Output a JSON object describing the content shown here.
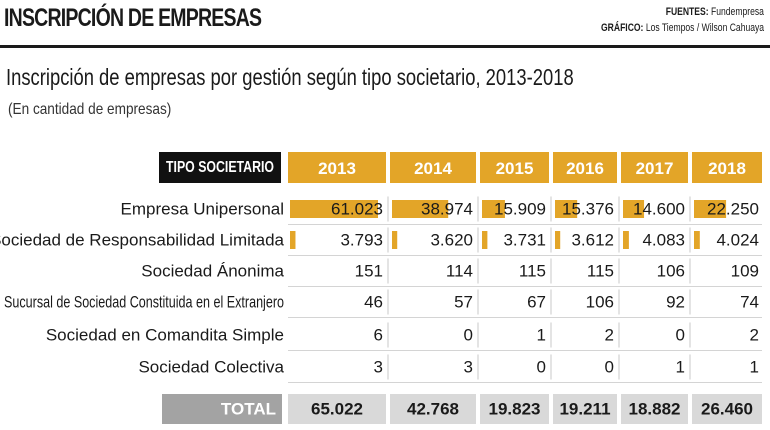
{
  "header": {
    "title": "INSCRIPCIÓN DE EMPRESAS",
    "sources_label": "FUENTES:",
    "sources_value": "Fundempresa",
    "graphic_label": "GRÁFICO:",
    "graphic_value": "Los Tiempos / Wilson Cahuaya"
  },
  "colors": {
    "accent": "#e3a528",
    "header_dark": "#111111",
    "total_gray": "#a3a3a3",
    "total_cell": "#d9d9d9"
  },
  "chart_data": {
    "type": "table",
    "title": "Inscripción de empresas por gestión según tipo societario, 2013-2018",
    "subtitle": "(En cantidad de empresas)",
    "row_header": "TIPO SOCIETARIO",
    "columns": [
      "2013",
      "2014",
      "2015",
      "2016",
      "2017",
      "2018"
    ],
    "rows": [
      {
        "label": "Empresa Unipersonal",
        "values": [
          61023,
          38974,
          15909,
          15376,
          14600,
          22250
        ],
        "display": [
          "61.023",
          "38.974",
          "15.909",
          "15.376",
          "14.600",
          "22.250"
        ]
      },
      {
        "label": "Sociedad de Responsabilidad Limitada",
        "values": [
          3793,
          3620,
          3731,
          3612,
          4083,
          4024
        ],
        "display": [
          "3.793",
          "3.620",
          "3.731",
          "3.612",
          "4.083",
          "4.024"
        ]
      },
      {
        "label": "Sociedad Ánonima",
        "values": [
          151,
          114,
          115,
          115,
          106,
          109
        ],
        "display": [
          "151",
          "114",
          "115",
          "115",
          "106",
          "109"
        ]
      },
      {
        "label": "Sucursal de Sociedad Constituida en el Extranjero",
        "values": [
          46,
          57,
          67,
          106,
          92,
          74
        ],
        "display": [
          "46",
          "57",
          "67",
          "106",
          "92",
          "74"
        ]
      },
      {
        "label": "Sociedad en Comandita Simple",
        "values": [
          6,
          0,
          1,
          2,
          0,
          2
        ],
        "display": [
          "6",
          "0",
          "1",
          "2",
          "0",
          "2"
        ]
      },
      {
        "label": "Sociedad Colectiva",
        "values": [
          3,
          3,
          0,
          0,
          1,
          1
        ],
        "display": [
          "3",
          "3",
          "0",
          "0",
          "1",
          "1"
        ]
      }
    ],
    "total": {
      "label": "TOTAL",
      "values": [
        65022,
        42768,
        19823,
        19211,
        18882,
        26460
      ],
      "display": [
        "65.022",
        "42.768",
        "19.823",
        "19.211",
        "18.882",
        "26.460"
      ]
    },
    "bars": {
      "color": "#e3a528",
      "max_value": 61023
    }
  }
}
